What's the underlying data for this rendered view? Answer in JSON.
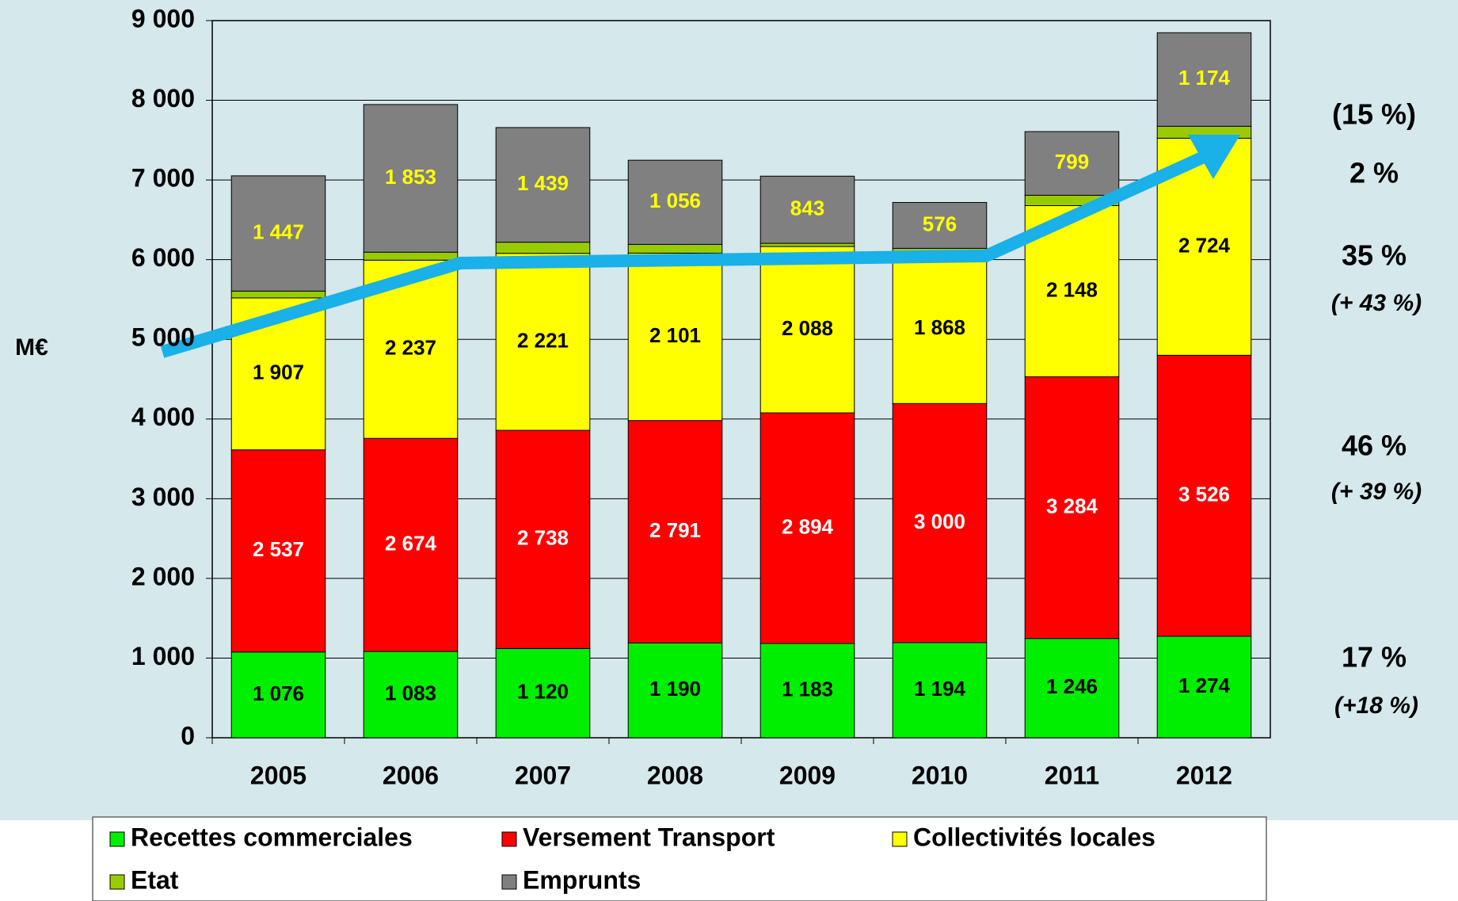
{
  "chart_data": {
    "type": "stacked-bar",
    "y_label": "M€",
    "categories": [
      "2005",
      "2006",
      "2007",
      "2008",
      "2009",
      "2010",
      "2011",
      "2012"
    ],
    "series": [
      {
        "name": "Recettes commerciales",
        "color": "#00ee00",
        "label_color": "#000000",
        "values": [
          1076,
          1083,
          1120,
          1190,
          1183,
          1194,
          1246,
          1274
        ],
        "value_labels": [
          "1 076",
          "1 083",
          "1 120",
          "1 190",
          "1 183",
          "1 194",
          "1 246",
          "1 274"
        ]
      },
      {
        "name": "Versement Transport",
        "color": "#ff0000",
        "label_color": "#ffffff",
        "values": [
          2537,
          2674,
          2738,
          2791,
          2894,
          3000,
          3284,
          3526
        ],
        "value_labels": [
          "2 537",
          "2 674",
          "2 738",
          "2 791",
          "2 894",
          "3 000",
          "3 284",
          "3 526"
        ]
      },
      {
        "name": "Collectivités locales",
        "color": "#ffff00",
        "label_color": "#000000",
        "values": [
          1907,
          2237,
          2221,
          2101,
          2088,
          1868,
          2148,
          2724
        ],
        "value_labels": [
          "1 907",
          "2 237",
          "2 221",
          "2 101",
          "2 088",
          "1 868",
          "2 148",
          "2 724"
        ]
      },
      {
        "name": "Etat",
        "color": "#99cc00",
        "values": [
          85,
          100,
          140,
          110,
          40,
          80,
          130,
          150
        ]
      },
      {
        "name": "Emprunts",
        "color": "#808080",
        "label_color": "#ffff00",
        "values": [
          1447,
          1853,
          1439,
          1056,
          843,
          576,
          799,
          1174
        ],
        "value_labels": [
          "1 447",
          "1 853",
          "1 439",
          "1 056",
          "843",
          "576",
          "799",
          "1 174"
        ]
      }
    ],
    "ylim": [
      0,
      9000
    ],
    "yticks": [
      0,
      {
        "value": 1000,
        "label": "1 000"
      },
      {
        "value": 2000,
        "label": "2 000"
      },
      {
        "value": 3000,
        "label": "3 000"
      },
      {
        "value": 4000,
        "label": "4 000"
      },
      {
        "value": 5000,
        "label": "5 000"
      },
      {
        "value": 6000,
        "label": "6 000"
      },
      {
        "value": 7000,
        "label": "7 000"
      },
      {
        "value": 8000,
        "label": "8 000"
      },
      {
        "value": 9000,
        "label": "9 000"
      }
    ],
    "grid": true,
    "annotations": [
      "(15 %)",
      "2 %",
      "35 %",
      "(+ 43 %)",
      "46 %",
      "(+ 39 %)",
      "17 %",
      "(+18 %)"
    ]
  }
}
